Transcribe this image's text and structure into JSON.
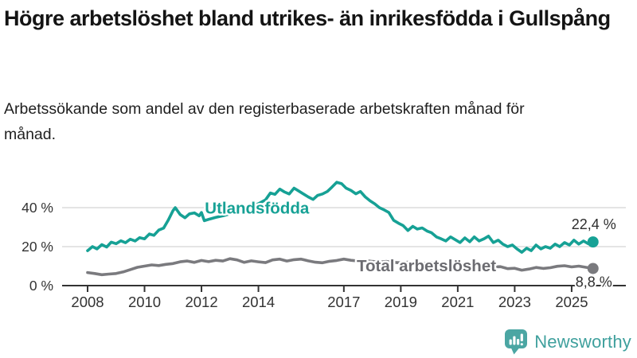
{
  "chart_data": {
    "type": "line",
    "title": "Högre arbetslöshet bland utrikes- än inrikesfödda i Gullspång",
    "subtitle": "Arbetssökande som andel av den registerbaserade arbetskraften månad för månad.",
    "unit": "%",
    "grid": true,
    "x_range": [
      2008,
      2025.75
    ],
    "y_range": [
      0,
      57
    ],
    "x_ticks": [
      {
        "v": 2008,
        "label": "2008"
      },
      {
        "v": 2010,
        "label": "2010"
      },
      {
        "v": 2012,
        "label": "2012"
      },
      {
        "v": 2014,
        "label": "2014"
      },
      {
        "v": 2017,
        "label": "2017"
      },
      {
        "v": 2019,
        "label": "2019"
      },
      {
        "v": 2021,
        "label": "2021"
      },
      {
        "v": 2023,
        "label": "2023"
      },
      {
        "v": 2025,
        "label": "2025"
      }
    ],
    "y_ticks": [
      {
        "v": 0,
        "label": "0 %"
      },
      {
        "v": 20,
        "label": "20 %"
      },
      {
        "v": 40,
        "label": "40 %"
      }
    ],
    "colors": {
      "axis": "#333333",
      "gridline": "#dcdcdc",
      "value_label": "#2e2e2e"
    },
    "series": [
      {
        "name": "Utlandsfödda",
        "color": "#16A195",
        "label_color": "#16A195",
        "end_label": "22,4 %",
        "end_value": 22.4,
        "end_label_side": "above",
        "label_pos": {
          "year": 2013.95,
          "pct": 37.0
        },
        "points": [
          [
            2008.0,
            17.9
          ],
          [
            2008.17,
            20.0
          ],
          [
            2008.33,
            18.8
          ],
          [
            2008.5,
            21.0
          ],
          [
            2008.67,
            19.8
          ],
          [
            2008.83,
            22.3
          ],
          [
            2009.0,
            21.5
          ],
          [
            2009.17,
            23.0
          ],
          [
            2009.33,
            22.0
          ],
          [
            2009.5,
            23.8
          ],
          [
            2009.67,
            22.9
          ],
          [
            2009.83,
            24.6
          ],
          [
            2010.0,
            24.0
          ],
          [
            2010.17,
            26.5
          ],
          [
            2010.33,
            25.8
          ],
          [
            2010.5,
            28.5
          ],
          [
            2010.67,
            29.5
          ],
          [
            2010.83,
            33.5
          ],
          [
            2011.0,
            38.5
          ],
          [
            2011.08,
            40.0
          ],
          [
            2011.25,
            36.5
          ],
          [
            2011.42,
            34.8
          ],
          [
            2011.58,
            36.8
          ],
          [
            2011.75,
            37.3
          ],
          [
            2011.92,
            35.8
          ],
          [
            2012.0,
            37.5
          ],
          [
            2012.1,
            33.3
          ],
          [
            2012.3,
            34.2
          ],
          [
            2012.5,
            35.0
          ],
          [
            2012.75,
            35.8
          ],
          [
            2013.0,
            36.8
          ],
          [
            2013.25,
            37.8
          ],
          [
            2013.5,
            39.2
          ],
          [
            2013.75,
            40.5
          ],
          [
            2014.0,
            42.0
          ],
          [
            2014.25,
            44.0
          ],
          [
            2014.42,
            47.5
          ],
          [
            2014.58,
            46.8
          ],
          [
            2014.75,
            49.5
          ],
          [
            2014.92,
            48.0
          ],
          [
            2015.08,
            47.0
          ],
          [
            2015.25,
            50.0
          ],
          [
            2015.42,
            48.5
          ],
          [
            2015.58,
            47.0
          ],
          [
            2015.75,
            45.5
          ],
          [
            2015.92,
            44.2
          ],
          [
            2016.08,
            46.3
          ],
          [
            2016.25,
            47.0
          ],
          [
            2016.42,
            48.3
          ],
          [
            2016.58,
            50.5
          ],
          [
            2016.75,
            53.0
          ],
          [
            2016.92,
            52.3
          ],
          [
            2017.08,
            50.0
          ],
          [
            2017.25,
            48.8
          ],
          [
            2017.42,
            47.1
          ],
          [
            2017.58,
            48.3
          ],
          [
            2017.75,
            45.5
          ],
          [
            2017.92,
            43.5
          ],
          [
            2018.08,
            42.0
          ],
          [
            2018.25,
            40.0
          ],
          [
            2018.42,
            38.8
          ],
          [
            2018.58,
            37.5
          ],
          [
            2018.75,
            33.5
          ],
          [
            2018.92,
            32.0
          ],
          [
            2019.08,
            30.8
          ],
          [
            2019.25,
            28.3
          ],
          [
            2019.42,
            30.4
          ],
          [
            2019.58,
            29.0
          ],
          [
            2019.75,
            29.6
          ],
          [
            2019.92,
            28.0
          ],
          [
            2020.08,
            27.1
          ],
          [
            2020.25,
            25.0
          ],
          [
            2020.42,
            24.0
          ],
          [
            2020.58,
            22.9
          ],
          [
            2020.75,
            25.0
          ],
          [
            2020.92,
            23.5
          ],
          [
            2021.08,
            22.1
          ],
          [
            2021.25,
            24.5
          ],
          [
            2021.42,
            22.5
          ],
          [
            2021.58,
            25.0
          ],
          [
            2021.75,
            22.9
          ],
          [
            2021.92,
            24.0
          ],
          [
            2022.08,
            25.4
          ],
          [
            2022.25,
            22.1
          ],
          [
            2022.42,
            23.3
          ],
          [
            2022.58,
            21.3
          ],
          [
            2022.75,
            20.0
          ],
          [
            2022.92,
            20.8
          ],
          [
            2023.08,
            18.8
          ],
          [
            2023.25,
            17.1
          ],
          [
            2023.42,
            19.2
          ],
          [
            2023.58,
            17.9
          ],
          [
            2023.75,
            20.8
          ],
          [
            2023.92,
            18.8
          ],
          [
            2024.08,
            20.0
          ],
          [
            2024.25,
            19.2
          ],
          [
            2024.42,
            21.3
          ],
          [
            2024.58,
            20.0
          ],
          [
            2024.75,
            22.1
          ],
          [
            2024.92,
            20.8
          ],
          [
            2025.08,
            23.3
          ],
          [
            2025.25,
            21.3
          ],
          [
            2025.42,
            22.9
          ],
          [
            2025.58,
            21.5
          ],
          [
            2025.75,
            22.4
          ]
        ]
      },
      {
        "name": "Total arbetslöshet",
        "color": "#7A7A7E",
        "label_color": "#6C6C71",
        "end_label": "8,8 %",
        "end_value": 8.8,
        "end_label_side": "below",
        "label_pos": {
          "year": 2019.9,
          "pct": 7.3
        },
        "points": [
          [
            2008.0,
            6.7
          ],
          [
            2008.25,
            6.2
          ],
          [
            2008.5,
            5.6
          ],
          [
            2008.75,
            5.9
          ],
          [
            2009.0,
            6.2
          ],
          [
            2009.25,
            7.0
          ],
          [
            2009.5,
            8.2
          ],
          [
            2009.75,
            9.4
          ],
          [
            2010.0,
            10.0
          ],
          [
            2010.25,
            10.6
          ],
          [
            2010.5,
            10.3
          ],
          [
            2010.75,
            10.9
          ],
          [
            2011.0,
            11.3
          ],
          [
            2011.25,
            12.2
          ],
          [
            2011.5,
            12.6
          ],
          [
            2011.75,
            11.9
          ],
          [
            2012.0,
            12.9
          ],
          [
            2012.25,
            12.3
          ],
          [
            2012.5,
            13.0
          ],
          [
            2012.75,
            12.6
          ],
          [
            2013.0,
            13.8
          ],
          [
            2013.25,
            13.2
          ],
          [
            2013.5,
            11.9
          ],
          [
            2013.75,
            12.7
          ],
          [
            2014.0,
            12.2
          ],
          [
            2014.25,
            11.8
          ],
          [
            2014.5,
            13.2
          ],
          [
            2014.75,
            13.6
          ],
          [
            2015.0,
            12.6
          ],
          [
            2015.25,
            13.3
          ],
          [
            2015.5,
            13.6
          ],
          [
            2015.75,
            12.7
          ],
          [
            2016.0,
            12.0
          ],
          [
            2016.25,
            11.7
          ],
          [
            2016.5,
            12.5
          ],
          [
            2016.75,
            12.9
          ],
          [
            2017.0,
            13.6
          ],
          [
            2017.25,
            13.0
          ],
          [
            2017.5,
            12.6
          ],
          [
            2017.75,
            12.9
          ],
          [
            2018.0,
            12.4
          ],
          [
            2018.25,
            12.0
          ],
          [
            2018.5,
            12.4
          ],
          [
            2018.75,
            11.9
          ],
          [
            2019.0,
            11.7
          ],
          [
            2019.25,
            12.0
          ],
          [
            2019.5,
            11.5
          ],
          [
            2019.75,
            11.3
          ],
          [
            2020.0,
            11.7
          ],
          [
            2020.25,
            12.0
          ],
          [
            2020.5,
            11.5
          ],
          [
            2020.75,
            11.2
          ],
          [
            2021.0,
            10.9
          ],
          [
            2021.25,
            10.5
          ],
          [
            2021.5,
            10.2
          ],
          [
            2021.75,
            10.0
          ],
          [
            2022.0,
            9.8
          ],
          [
            2022.25,
            9.6
          ],
          [
            2022.5,
            9.7
          ],
          [
            2022.75,
            8.7
          ],
          [
            2023.0,
            8.9
          ],
          [
            2023.25,
            7.9
          ],
          [
            2023.5,
            8.5
          ],
          [
            2023.75,
            9.3
          ],
          [
            2024.0,
            8.8
          ],
          [
            2024.25,
            9.2
          ],
          [
            2024.5,
            9.9
          ],
          [
            2024.75,
            10.2
          ],
          [
            2025.0,
            9.6
          ],
          [
            2025.25,
            10.0
          ],
          [
            2025.5,
            9.4
          ],
          [
            2025.75,
            8.8
          ]
        ]
      }
    ]
  },
  "footer": {
    "brand": "Newsworthy",
    "brand_icon": "bar-chart-speech-bubble-icon",
    "brand_color": "#4BA6A3"
  }
}
